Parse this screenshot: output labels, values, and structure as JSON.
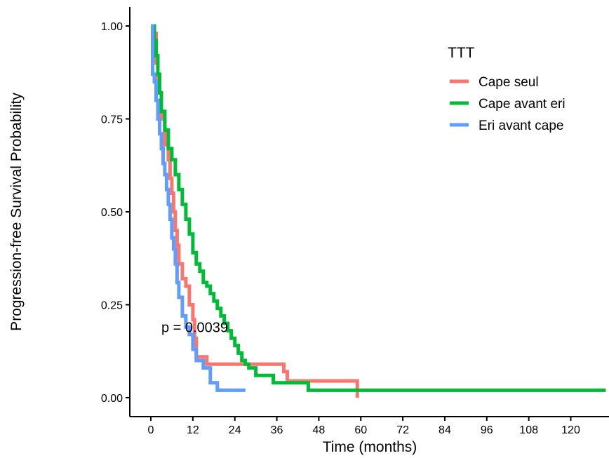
{
  "chart_data": {
    "type": "line",
    "title": "",
    "xlabel": "Time (months)",
    "ylabel": "Progression-free Survival Probability",
    "xlim": [
      -5,
      130
    ],
    "ylim": [
      -0.05,
      1.05
    ],
    "x_ticks": [
      0,
      12,
      24,
      36,
      48,
      60,
      72,
      84,
      96,
      108,
      120
    ],
    "y_ticks": [
      0.0,
      0.25,
      0.5,
      0.75,
      1.0
    ],
    "y_tick_labels": [
      "0.00",
      "0.25",
      "0.50",
      "0.75",
      "1.00"
    ],
    "grid": false,
    "legend": {
      "title": "TTT",
      "position": "top-right"
    },
    "annotation": {
      "text": "p = 0.0039",
      "x": 3,
      "y": 0.19
    },
    "series": [
      {
        "name": "Cape seul",
        "color": "#F8766D",
        "x": [
          0,
          1,
          1.5,
          2,
          3,
          4,
          5,
          5.5,
          6,
          6.5,
          7,
          7.5,
          8,
          9,
          10,
          11,
          12,
          12.5,
          13,
          15,
          16,
          18,
          37,
          38,
          39,
          58,
          59,
          59
        ],
        "y": [
          1.0,
          0.98,
          0.9,
          0.82,
          0.75,
          0.68,
          0.64,
          0.59,
          0.55,
          0.5,
          0.45,
          0.41,
          0.36,
          0.32,
          0.3,
          0.25,
          0.21,
          0.16,
          0.11,
          0.11,
          0.09,
          0.09,
          0.09,
          0.07,
          0.045,
          0.045,
          0.045,
          0.0
        ]
      },
      {
        "name": "Cape avant eri",
        "color": "#00BA38",
        "x": [
          0,
          1,
          1.5,
          2,
          2.5,
          3,
          4,
          5,
          6,
          7,
          8,
          9,
          10,
          11,
          12,
          13,
          14,
          15,
          16,
          17,
          18,
          19,
          20,
          21,
          22,
          23,
          24,
          25,
          26,
          27,
          28,
          30,
          35,
          38,
          45,
          60,
          130
        ],
        "y": [
          1.0,
          0.96,
          0.92,
          0.87,
          0.82,
          0.77,
          0.72,
          0.67,
          0.64,
          0.6,
          0.56,
          0.52,
          0.48,
          0.44,
          0.39,
          0.36,
          0.34,
          0.31,
          0.3,
          0.28,
          0.26,
          0.24,
          0.22,
          0.2,
          0.18,
          0.16,
          0.14,
          0.12,
          0.1,
          0.09,
          0.08,
          0.06,
          0.04,
          0.04,
          0.02,
          0.02,
          0.02
        ]
      },
      {
        "name": "Eri avant cape",
        "color": "#619CFF",
        "x": [
          0,
          0.5,
          1,
          1.5,
          2,
          2.5,
          3,
          3.5,
          4,
          4.5,
          5,
          5.5,
          6,
          6.5,
          7,
          7.5,
          8,
          9,
          10,
          11,
          12,
          13,
          15,
          17,
          19,
          22,
          27
        ],
        "y": [
          1.0,
          0.87,
          0.85,
          0.8,
          0.75,
          0.71,
          0.67,
          0.63,
          0.6,
          0.56,
          0.52,
          0.48,
          0.43,
          0.4,
          0.36,
          0.31,
          0.27,
          0.22,
          0.19,
          0.17,
          0.13,
          0.1,
          0.08,
          0.04,
          0.02,
          0.02,
          0.02
        ]
      }
    ]
  }
}
